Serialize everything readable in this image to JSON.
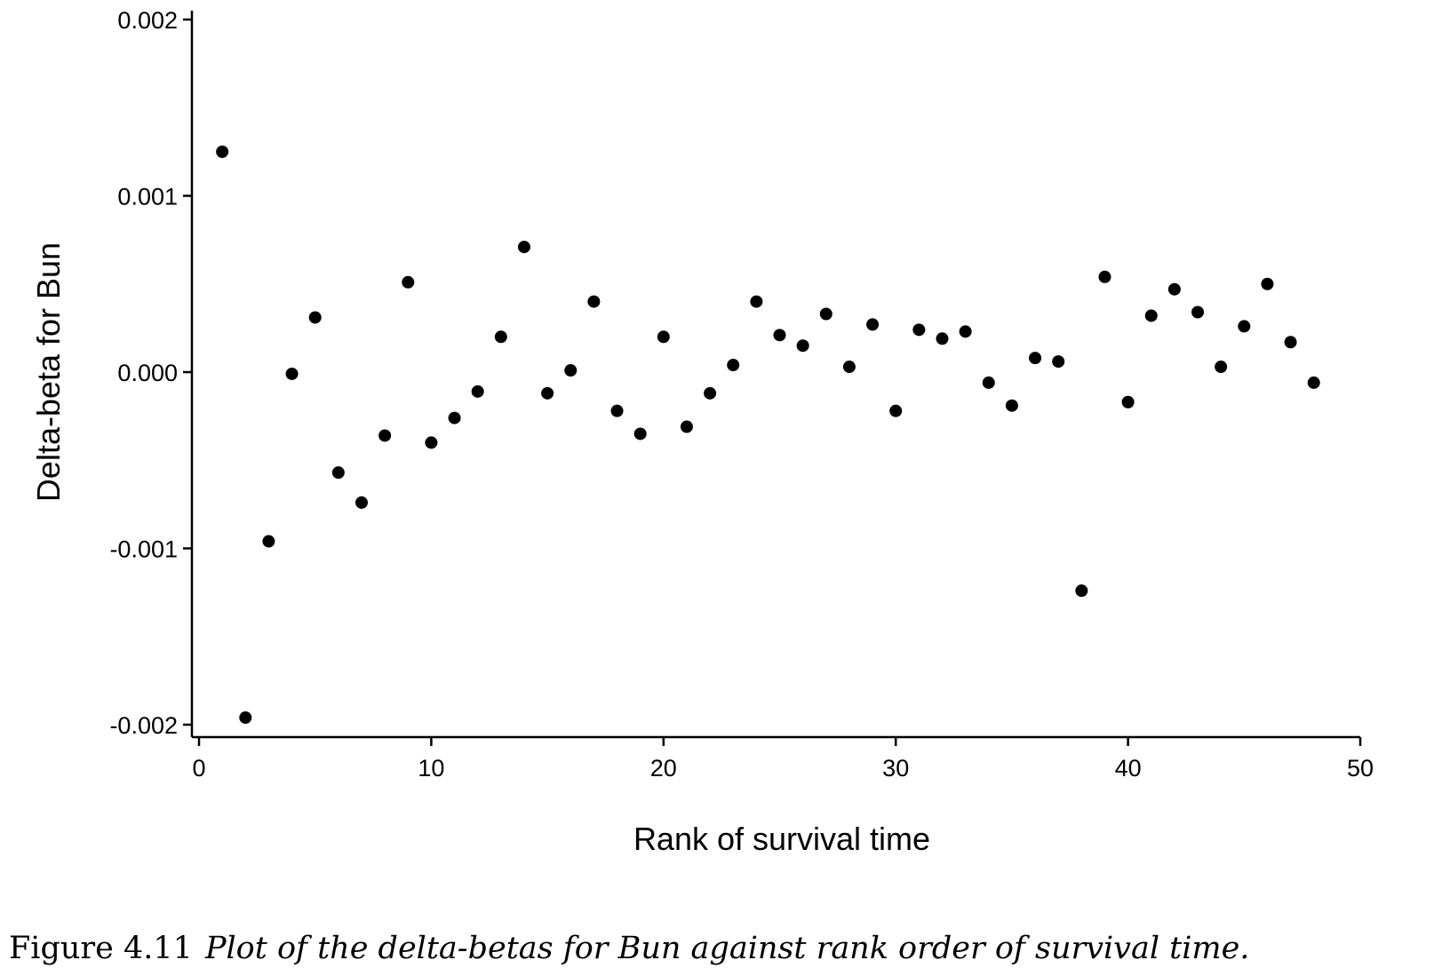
{
  "chart_data": {
    "type": "scatter",
    "xlabel": "Rank of survival time",
    "ylabel": "Delta-beta for Bun",
    "xlim": [
      0,
      50
    ],
    "ylim": [
      -0.002,
      0.002
    ],
    "x_ticks": [
      {
        "value": 0,
        "label": "0"
      },
      {
        "value": 10,
        "label": "10"
      },
      {
        "value": 20,
        "label": "20"
      },
      {
        "value": 30,
        "label": "30"
      },
      {
        "value": 40,
        "label": "40"
      },
      {
        "value": 50,
        "label": "50"
      }
    ],
    "y_ticks": [
      {
        "value": -0.002,
        "label": "-0.002"
      },
      {
        "value": -0.001,
        "label": "-0.001"
      },
      {
        "value": 0,
        "label": "0.000"
      },
      {
        "value": 0.001,
        "label": "0.001"
      },
      {
        "value": 0.002,
        "label": "0.002"
      }
    ],
    "grid": false,
    "marker_color": "#000000",
    "points": [
      {
        "x": 1,
        "y": 0.00125
      },
      {
        "x": 2,
        "y": -0.00196
      },
      {
        "x": 3,
        "y": -0.00096
      },
      {
        "x": 4,
        "y": -1e-05
      },
      {
        "x": 5,
        "y": 0.00031
      },
      {
        "x": 6,
        "y": -0.00057
      },
      {
        "x": 7,
        "y": -0.00074
      },
      {
        "x": 8,
        "y": -0.00036
      },
      {
        "x": 9,
        "y": 0.00051
      },
      {
        "x": 10,
        "y": -0.0004
      },
      {
        "x": 11,
        "y": -0.00026
      },
      {
        "x": 12,
        "y": -0.00011
      },
      {
        "x": 13,
        "y": 0.0002
      },
      {
        "x": 14,
        "y": 0.00071
      },
      {
        "x": 15,
        "y": -0.00012
      },
      {
        "x": 16,
        "y": 1e-05
      },
      {
        "x": 17,
        "y": 0.0004
      },
      {
        "x": 18,
        "y": -0.00022
      },
      {
        "x": 19,
        "y": -0.00035
      },
      {
        "x": 20,
        "y": 0.0002
      },
      {
        "x": 21,
        "y": -0.00031
      },
      {
        "x": 22,
        "y": -0.00012
      },
      {
        "x": 23,
        "y": 4e-05
      },
      {
        "x": 24,
        "y": 0.0004
      },
      {
        "x": 25,
        "y": 0.00021
      },
      {
        "x": 26,
        "y": 0.00015
      },
      {
        "x": 27,
        "y": 0.00033
      },
      {
        "x": 28,
        "y": 3e-05
      },
      {
        "x": 29,
        "y": 0.00027
      },
      {
        "x": 30,
        "y": -0.00022
      },
      {
        "x": 31,
        "y": 0.00024
      },
      {
        "x": 32,
        "y": 0.00019
      },
      {
        "x": 33,
        "y": 0.00023
      },
      {
        "x": 34,
        "y": -6e-05
      },
      {
        "x": 35,
        "y": -0.00019
      },
      {
        "x": 36,
        "y": 8e-05
      },
      {
        "x": 37,
        "y": 6e-05
      },
      {
        "x": 38,
        "y": -0.00124
      },
      {
        "x": 39,
        "y": 0.00054
      },
      {
        "x": 40,
        "y": -0.00017
      },
      {
        "x": 41,
        "y": 0.00032
      },
      {
        "x": 42,
        "y": 0.00047
      },
      {
        "x": 43,
        "y": 0.00034
      },
      {
        "x": 44,
        "y": 3e-05
      },
      {
        "x": 45,
        "y": 0.00026
      },
      {
        "x": 46,
        "y": 0.0005
      },
      {
        "x": 47,
        "y": 0.00017
      },
      {
        "x": 48,
        "y": -6e-05
      }
    ]
  },
  "caption": {
    "label": "Figure 4.11",
    "text": "Plot of the delta-betas for Bun against rank order of survival time."
  }
}
